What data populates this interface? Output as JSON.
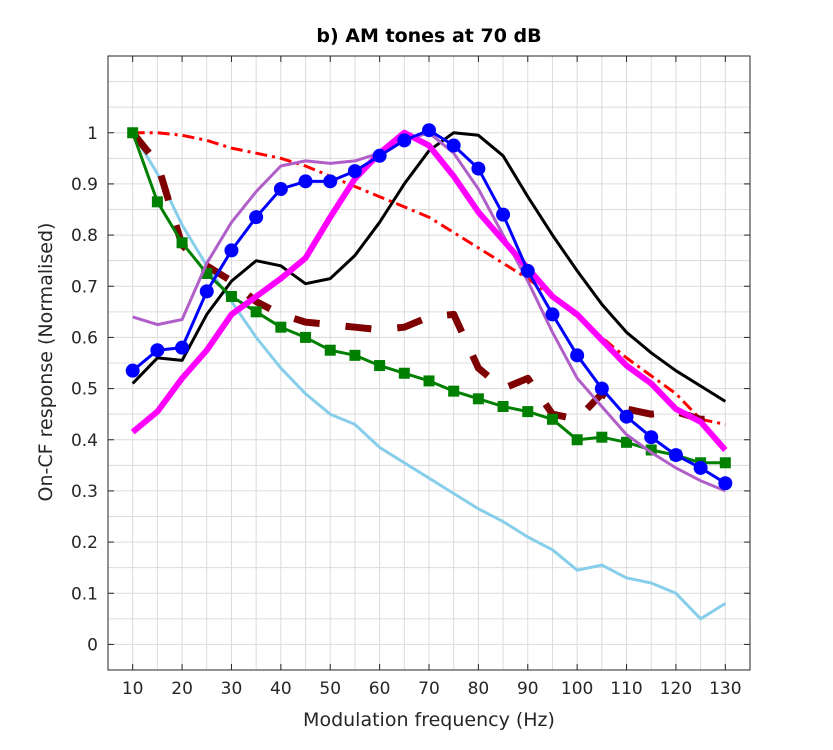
{
  "chart_data": {
    "type": "line",
    "title": "b) AM tones at 70 dB",
    "xlabel": "Modulation frequency (Hz)",
    "ylabel": "On-CF response (Normalised)",
    "xlim": [
      5,
      135
    ],
    "ylim": [
      -0.05,
      1.15
    ],
    "xticks": [
      10,
      20,
      30,
      40,
      50,
      60,
      70,
      80,
      90,
      100,
      110,
      120,
      130
    ],
    "yticks": [
      0,
      0.1,
      0.2,
      0.3,
      0.4,
      0.5,
      0.6,
      0.7,
      0.8,
      0.9,
      1
    ],
    "xtick_labels": [
      "10",
      "20",
      "30",
      "40",
      "50",
      "60",
      "70",
      "80",
      "90",
      "100",
      "110",
      "120",
      "130"
    ],
    "ytick_labels": [
      "0",
      "0.1",
      "0.2",
      "0.3",
      "0.4",
      "0.5",
      "0.6",
      "0.7",
      "0.8",
      "0.9",
      "1"
    ],
    "grid": true,
    "x": [
      10,
      15,
      20,
      25,
      30,
      35,
      40,
      45,
      50,
      55,
      60,
      65,
      70,
      75,
      80,
      85,
      90,
      95,
      100,
      105,
      110,
      115,
      120,
      125,
      130
    ],
    "series": [
      {
        "name": "light-blue",
        "color": "#87ceeb",
        "style": "solid",
        "marker": "none",
        "values": [
          1.0,
          0.92,
          0.82,
          0.74,
          0.67,
          0.6,
          0.54,
          0.49,
          0.45,
          0.43,
          0.385,
          0.355,
          0.325,
          0.295,
          0.265,
          0.24,
          0.21,
          0.185,
          0.145,
          0.155,
          0.13,
          0.12,
          0.1,
          0.05,
          0.08
        ]
      },
      {
        "name": "black",
        "color": "#000000",
        "style": "solid",
        "marker": "none",
        "values": [
          0.51,
          0.56,
          0.555,
          0.645,
          0.71,
          0.75,
          0.74,
          0.705,
          0.715,
          0.76,
          0.825,
          0.9,
          0.965,
          1.0,
          0.995,
          0.955,
          0.875,
          0.8,
          0.73,
          0.665,
          0.61,
          0.57,
          0.535,
          0.505,
          0.475
        ]
      },
      {
        "name": "red-dashdot",
        "color": "#ff0000",
        "style": "dashdot",
        "marker": "none",
        "values": [
          1.0,
          1.0,
          0.995,
          0.985,
          0.97,
          0.96,
          0.95,
          0.935,
          0.915,
          0.895,
          0.875,
          0.855,
          0.835,
          0.805,
          0.775,
          0.745,
          0.715,
          0.68,
          0.64,
          0.6,
          0.56,
          0.525,
          0.49,
          0.44,
          0.43
        ]
      },
      {
        "name": "dark-red-dashed",
        "color": "#7f0000",
        "style": "dashed",
        "marker": "none",
        "values": [
          1.0,
          0.94,
          0.78,
          0.74,
          0.71,
          0.67,
          0.645,
          0.63,
          0.625,
          0.62,
          0.615,
          0.62,
          0.64,
          0.645,
          0.54,
          0.5,
          0.52,
          0.45,
          0.44,
          0.49,
          0.46,
          0.45,
          0.455,
          0.44,
          0.44
        ]
      },
      {
        "name": "green-squares",
        "color": "#008000",
        "style": "solid",
        "marker": "square",
        "values": [
          1.0,
          0.865,
          0.785,
          0.725,
          0.68,
          0.65,
          0.62,
          0.6,
          0.575,
          0.565,
          0.545,
          0.53,
          0.515,
          0.495,
          0.48,
          0.465,
          0.455,
          0.44,
          0.4,
          0.405,
          0.395,
          0.38,
          0.37,
          0.355,
          0.355
        ]
      },
      {
        "name": "purple",
        "color": "#b05ec8",
        "style": "solid",
        "marker": "none",
        "values": [
          0.64,
          0.625,
          0.635,
          0.745,
          0.825,
          0.885,
          0.935,
          0.945,
          0.94,
          0.945,
          0.96,
          0.985,
          1.0,
          0.96,
          0.89,
          0.8,
          0.71,
          0.61,
          0.52,
          0.465,
          0.41,
          0.375,
          0.345,
          0.32,
          0.3
        ]
      },
      {
        "name": "magenta",
        "color": "#ff00ff",
        "style": "solid",
        "marker": "none",
        "values": [
          0.415,
          0.455,
          0.52,
          0.575,
          0.645,
          0.68,
          0.715,
          0.755,
          0.835,
          0.91,
          0.96,
          1.0,
          0.975,
          0.915,
          0.845,
          0.79,
          0.735,
          0.68,
          0.645,
          0.595,
          0.545,
          0.51,
          0.46,
          0.435,
          0.38
        ]
      },
      {
        "name": "blue-circles",
        "color": "#0000ff",
        "style": "solid",
        "marker": "circle",
        "values": [
          0.535,
          0.575,
          0.58,
          0.69,
          0.77,
          0.835,
          0.89,
          0.905,
          0.905,
          0.925,
          0.955,
          0.985,
          1.005,
          0.975,
          0.93,
          0.84,
          0.73,
          0.645,
          0.565,
          0.5,
          0.445,
          0.405,
          0.37,
          0.345,
          0.315
        ]
      }
    ]
  }
}
